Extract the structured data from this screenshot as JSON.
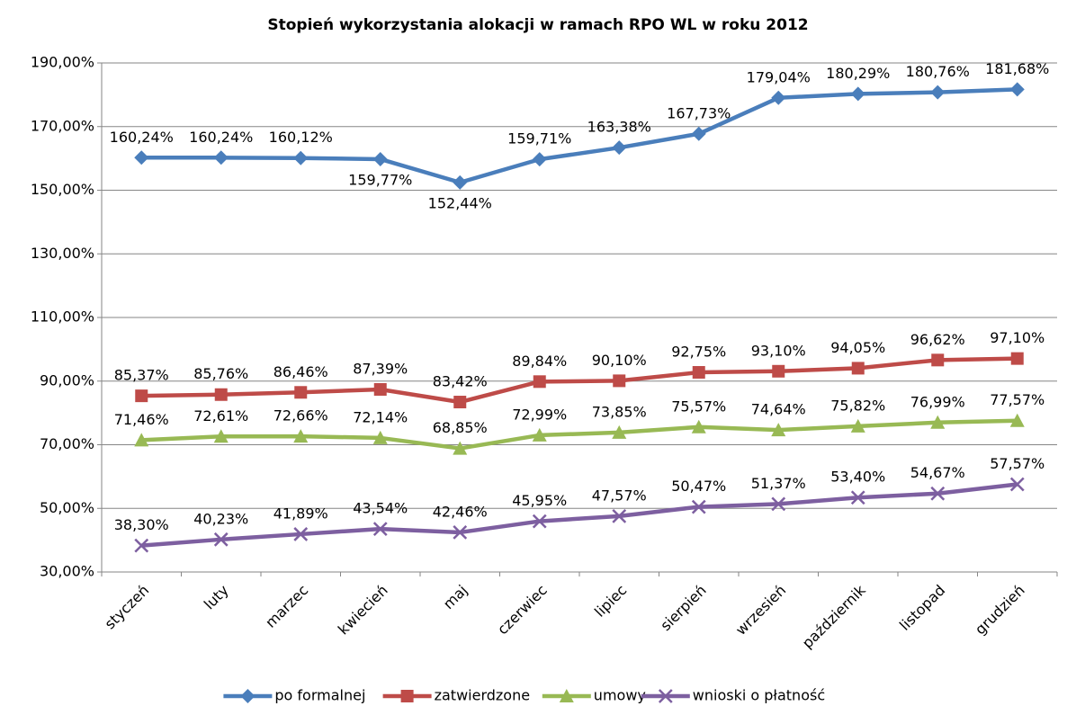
{
  "chart_data": {
    "type": "line",
    "title": "Stopień wykorzystania alokacji w ramach RPO WL w roku 2012",
    "categories": [
      "styczeń",
      "luty",
      "marzec",
      "kwiecień",
      "maj",
      "czerwiec",
      "lipiec",
      "sierpień",
      "wrzesień",
      "październik",
      "listopad",
      "grudzień"
    ],
    "series": [
      {
        "name": "po formalnej",
        "color": "#4a7ebb",
        "marker": "diamond",
        "values": [
          160.24,
          160.24,
          160.12,
          159.77,
          152.44,
          159.71,
          163.38,
          167.73,
          179.04,
          180.29,
          180.76,
          181.68
        ],
        "value_labels": [
          "160,24%",
          "160,24%",
          "160,12%",
          "159,77%",
          "152,44%",
          "159,71%",
          "163,38%",
          "167,73%",
          "179,04%",
          "180,29%",
          "180,76%",
          "181,68%"
        ]
      },
      {
        "name": "zatwierdzone",
        "color": "#be4b48",
        "marker": "square",
        "values": [
          85.37,
          85.76,
          86.46,
          87.39,
          83.42,
          89.84,
          90.1,
          92.75,
          93.1,
          94.05,
          96.62,
          97.1
        ],
        "value_labels": [
          "85,37%",
          "85,76%",
          "86,46%",
          "87,39%",
          "83,42%",
          "89,84%",
          "90,10%",
          "92,75%",
          "93,10%",
          "94,05%",
          "96,62%",
          "97,10%"
        ]
      },
      {
        "name": "umowy",
        "color": "#98b954",
        "marker": "triangle",
        "values": [
          71.46,
          72.61,
          72.66,
          72.14,
          68.85,
          72.99,
          73.85,
          75.57,
          74.64,
          75.82,
          76.99,
          77.57
        ],
        "value_labels": [
          "71,46%",
          "72,61%",
          "72,66%",
          "72,14%",
          "68,85%",
          "72,99%",
          "73,85%",
          "75,57%",
          "74,64%",
          "75,82%",
          "76,99%",
          "77,57%"
        ]
      },
      {
        "name": "wnioski o płatność",
        "color": "#7d5fa0",
        "marker": "x",
        "values": [
          38.3,
          40.23,
          41.89,
          43.54,
          42.46,
          45.95,
          47.57,
          50.47,
          51.37,
          53.4,
          54.67,
          57.57
        ],
        "value_labels": [
          "38,30%",
          "40,23%",
          "41,89%",
          "43,54%",
          "42,46%",
          "45,95%",
          "47,57%",
          "50,47%",
          "51,37%",
          "53,40%",
          "54,67%",
          "57,57%"
        ]
      }
    ],
    "ylim": [
      30,
      190
    ],
    "yticks": [
      {
        "value": 30,
        "label": "30,00%"
      },
      {
        "value": 50,
        "label": "50,00%"
      },
      {
        "value": 70,
        "label": "70,00%"
      },
      {
        "value": 90,
        "label": "90,00%"
      },
      {
        "value": 110,
        "label": "110,00%"
      },
      {
        "value": 130,
        "label": "130,00%"
      },
      {
        "value": 150,
        "label": "150,00%"
      },
      {
        "value": 170,
        "label": "170,00%"
      },
      {
        "value": 190,
        "label": "190,00%"
      }
    ],
    "grid": true,
    "legend": "bottom"
  }
}
